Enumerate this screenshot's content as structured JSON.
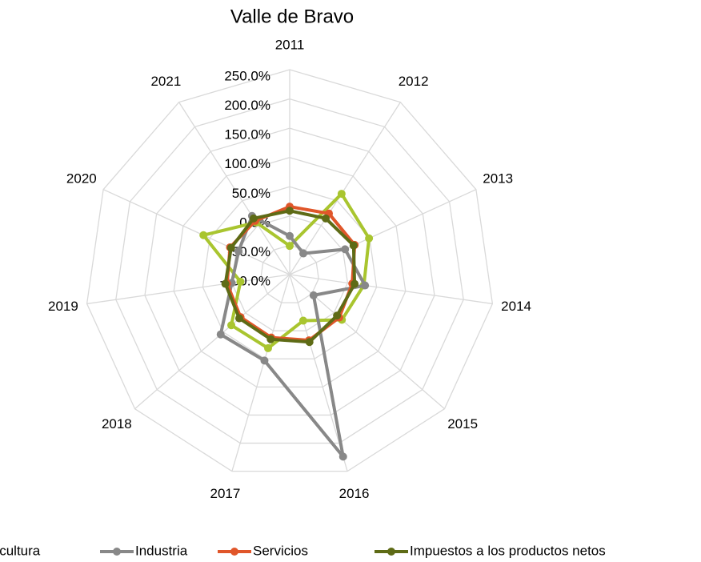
{
  "chart_data": {
    "type": "radar",
    "title": "Valle de Bravo",
    "categories": [
      "2011",
      "2012",
      "2013",
      "2014",
      "2015",
      "2016",
      "2017",
      "2018",
      "2019",
      "2020",
      "2021"
    ],
    "rlim": [
      -100,
      250
    ],
    "rticks": [
      {
        "value": -100,
        "label": "-100.0%"
      },
      {
        "value": -50,
        "label": "-50.0%"
      },
      {
        "value": 0,
        "label": "0.0%"
      },
      {
        "value": 50,
        "label": "50.0%"
      },
      {
        "value": 100,
        "label": "100.0%"
      },
      {
        "value": 150,
        "label": "150.0%"
      },
      {
        "value": 200,
        "label": "200.0%"
      },
      {
        "value": 250,
        "label": "250.0%"
      }
    ],
    "grid": true,
    "legend": "bottom",
    "series": [
      {
        "name": "Agricultura",
        "color": "#a9c52f",
        "values": [
          -51,
          64,
          49,
          28,
          18,
          -18,
          31,
          32,
          -15,
          62,
          6
        ]
      },
      {
        "name": "Industria",
        "color": "#888888",
        "values": [
          -34,
          -57,
          4,
          30,
          -46,
          224,
          53,
          56,
          0,
          -4,
          19
        ]
      },
      {
        "name": "Servicios",
        "color": "#e0562a",
        "values": [
          16,
          24,
          22,
          8,
          12,
          17,
          12,
          11,
          8,
          12,
          9
        ]
      },
      {
        "name": "Impuestos a los productos netos",
        "color": "#5e6b16",
        "values": [
          9,
          14,
          20,
          12,
          7,
          20,
          15,
          14,
          11,
          10,
          14
        ]
      }
    ]
  }
}
